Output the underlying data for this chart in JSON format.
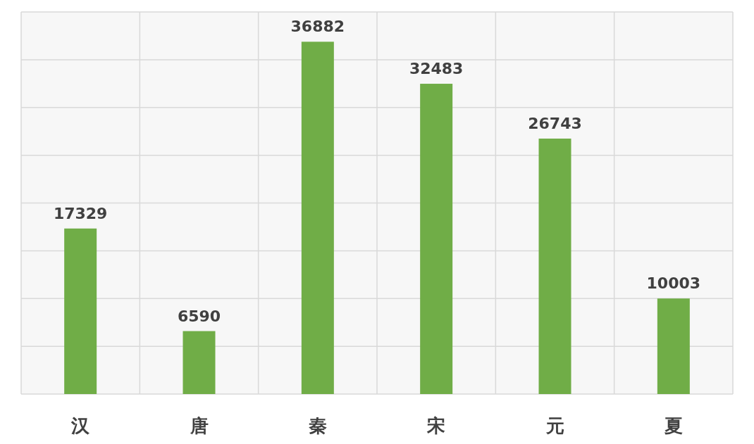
{
  "chart_data": {
    "type": "bar",
    "categories": [
      "汉",
      "唐",
      "秦",
      "宋",
      "元",
      "夏"
    ],
    "values": [
      17329,
      6590,
      36882,
      32483,
      26743,
      10003
    ],
    "color": "#70ad47",
    "data_labels": true,
    "grid": true,
    "tick_labels": "x",
    "ylim": [
      0,
      40000
    ],
    "yticks": [
      {
        "value": 0,
        "label": null
      },
      {
        "value": 5000,
        "label": null
      },
      {
        "value": 10000,
        "label": null
      },
      {
        "value": 15000,
        "label": null
      },
      {
        "value": 20000,
        "label": null
      },
      {
        "value": 25000,
        "label": null
      },
      {
        "value": 30000,
        "label": null
      },
      {
        "value": 35000,
        "label": null
      },
      {
        "value": 40000,
        "label": null
      }
    ]
  }
}
